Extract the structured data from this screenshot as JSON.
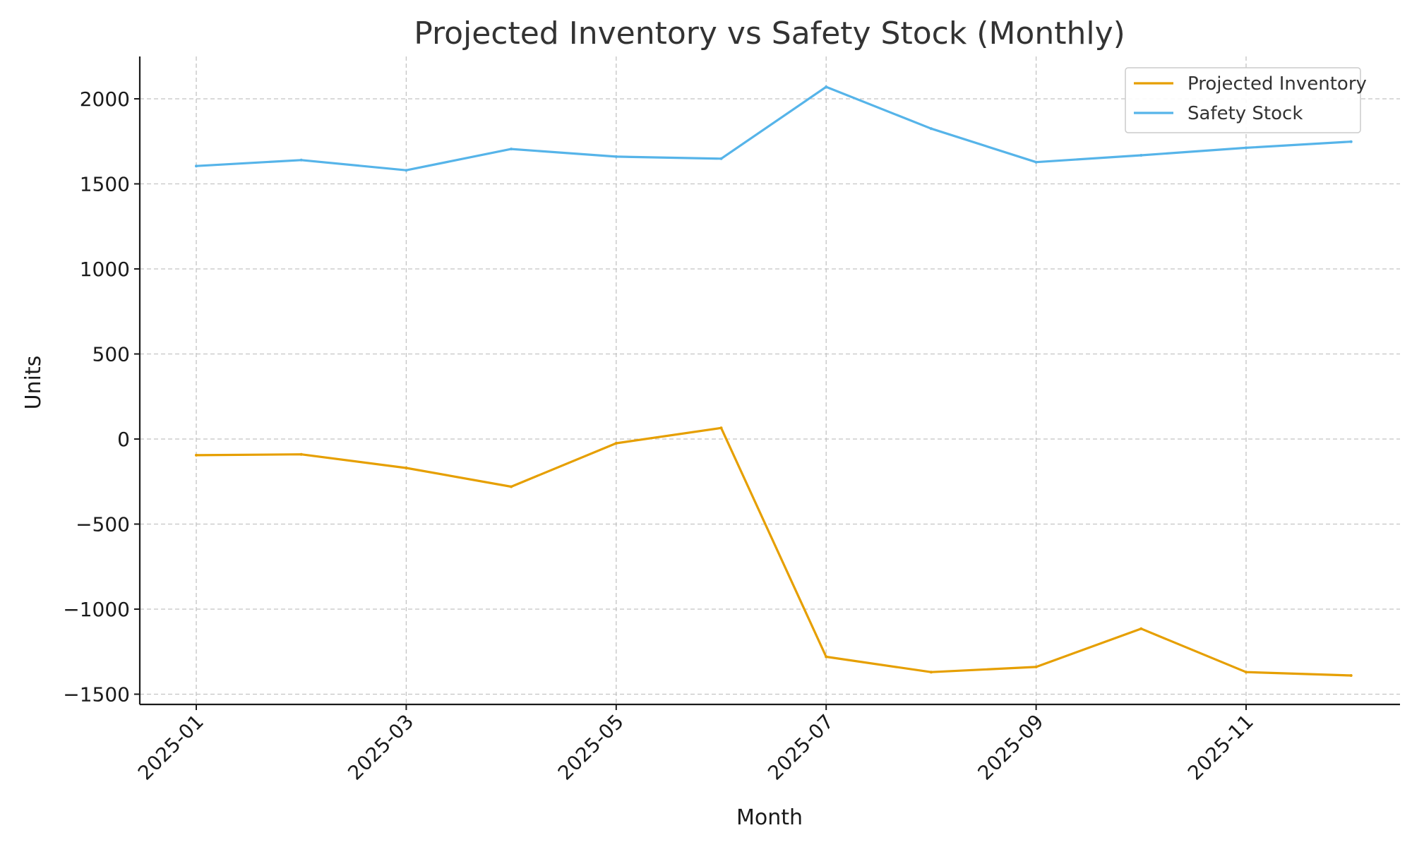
{
  "chart_data": {
    "type": "line",
    "title": "Projected Inventory vs Safety Stock (Monthly)",
    "xlabel": "Month",
    "ylabel": "Units",
    "x": [
      "2025-01",
      "2025-02",
      "2025-03",
      "2025-04",
      "2025-05",
      "2025-06",
      "2025-07",
      "2025-08",
      "2025-09",
      "2025-10",
      "2025-11",
      "2025-12"
    ],
    "x_ticks": [
      "2025-01",
      "2025-03",
      "2025-05",
      "2025-07",
      "2025-09",
      "2025-11"
    ],
    "y_ticks": [
      2000,
      1500,
      1000,
      500,
      0,
      -500,
      -1000,
      -1500
    ],
    "y_tick_labels": [
      "2000",
      "1500",
      "1000",
      "500",
      "0",
      "−500",
      "−1000",
      "−1500"
    ],
    "ylim": [
      -1560,
      2240
    ],
    "grid": true,
    "legend_position": "top-right",
    "series": [
      {
        "name": "Projected Inventory",
        "color": "#E69F00",
        "values": [
          -95,
          -90,
          -170,
          -280,
          -25,
          65,
          -1280,
          -1370,
          -1340,
          -1115,
          -1370,
          -1390
        ]
      },
      {
        "name": "Safety Stock",
        "color": "#56B4E9",
        "values": [
          1605,
          1640,
          1580,
          1705,
          1660,
          1648,
          2070,
          1825,
          1628,
          1668,
          1712,
          1748
        ]
      }
    ]
  }
}
